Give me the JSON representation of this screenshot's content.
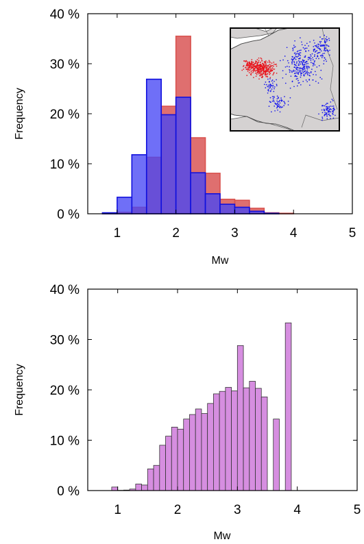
{
  "chart_data": [
    {
      "type": "bar",
      "xlabel": "Mw",
      "ylabel": "Frequency",
      "xlim": [
        0.5,
        5
      ],
      "ylim": [
        0,
        40
      ],
      "x_ticks": [
        1,
        2,
        3,
        4,
        5
      ],
      "x_tick_labels": [
        "1",
        "2",
        "3",
        "4",
        "5"
      ],
      "y_ticks": [
        0,
        10,
        20,
        30,
        40
      ],
      "y_tick_labels": [
        "0 %",
        "10 %",
        "20 %",
        "30 %",
        "40 %"
      ],
      "bin_width": 0.25,
      "bin_starts": [
        0.5,
        0.75,
        1.0,
        1.25,
        1.5,
        1.75,
        2.0,
        2.25,
        2.5,
        2.75,
        3.0,
        3.25,
        3.5,
        3.75,
        4.0,
        4.25,
        4.5,
        4.75
      ],
      "series": [
        {
          "color": "#d9534f",
          "fill": "rgba(214,70,70,0.78)",
          "values": [
            0,
            0.1,
            0.3,
            1.3,
            11.3,
            21.5,
            35.5,
            15.2,
            8.1,
            2.9,
            2.7,
            1.1,
            0.2,
            0.1,
            0,
            0,
            0,
            0
          ]
        },
        {
          "color": "#1010dd",
          "fill": "rgba(70,70,245,0.78)",
          "values": [
            0,
            0.2,
            3.3,
            11.8,
            26.9,
            19.8,
            23.3,
            8.2,
            4.0,
            1.9,
            1.3,
            0.5,
            0.1,
            0,
            0,
            0,
            0,
            0
          ]
        }
      ],
      "inset_map": {
        "colors": {
          "red": "#e8141c",
          "blue": "#1515ee",
          "land": "#d5d2d2",
          "sea": "#ffffff"
        }
      }
    },
    {
      "type": "bar",
      "xlabel": "Mw",
      "ylabel": "Frequency",
      "xlim": [
        0.5,
        5
      ],
      "ylim": [
        0,
        40
      ],
      "x_ticks": [
        1,
        2,
        3,
        4,
        5
      ],
      "x_tick_labels": [
        "1",
        "2",
        "3",
        "4",
        "5"
      ],
      "y_ticks": [
        0,
        10,
        20,
        30,
        40
      ],
      "y_tick_labels": [
        "0 %",
        "10 %",
        "20 %",
        "30 %",
        "40 %"
      ],
      "bin_width": 0.1,
      "bin_starts": [
        0.9,
        1.0,
        1.1,
        1.2,
        1.3,
        1.4,
        1.5,
        1.6,
        1.7,
        1.8,
        1.9,
        2.0,
        2.1,
        2.2,
        2.3,
        2.4,
        2.5,
        2.6,
        2.7,
        2.8,
        2.9,
        3.0,
        3.1,
        3.2,
        3.3,
        3.4,
        3.5,
        3.6,
        3.7,
        3.8
      ],
      "series": [
        {
          "color": "#333333",
          "fill": "#d68ee0",
          "values": [
            0.7,
            0.05,
            0.1,
            0.3,
            1.3,
            1.1,
            4.3,
            5.0,
            9.0,
            10.8,
            12.6,
            12.2,
            14.2,
            15.1,
            16.2,
            15.3,
            17.3,
            19.2,
            19.7,
            20.5,
            19.8,
            28.8,
            20.4,
            21.7,
            20.3,
            18.6,
            0,
            14.2,
            0,
            33.3
          ]
        }
      ]
    }
  ]
}
